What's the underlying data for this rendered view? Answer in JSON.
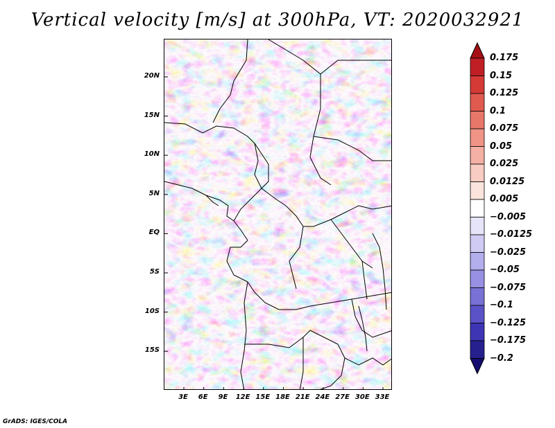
{
  "title": "Vertical velocity [m/s] at 300hPa, VT: 2020032921",
  "footer": "GrADS: IGES/COLA",
  "lat_labels": [
    "20N",
    "15N",
    "10N",
    "5N",
    "EQ",
    "5S",
    "10S",
    "15S"
  ],
  "lon_labels": [
    "3E",
    "6E",
    "9E",
    "12E",
    "15E",
    "18E",
    "21E",
    "24E",
    "27E",
    "30E",
    "33E"
  ],
  "colorbar": {
    "labels": [
      "0.175",
      "0.15",
      "0.125",
      "0.1",
      "0.075",
      "0.05",
      "0.025",
      "0.0125",
      "0.005",
      "−0.005",
      "−0.0125",
      "−0.025",
      "−0.05",
      "−0.075",
      "−0.1",
      "−0.125",
      "−0.175",
      "−0.2"
    ],
    "colors": [
      "#a50f15",
      "#c01f25",
      "#d63a36",
      "#e05a50",
      "#e8776a",
      "#ef9486",
      "#f4b0a4",
      "#f8ccc2",
      "#fbe4dd",
      "#ffffff",
      "#e6e4f8",
      "#cfcbf3",
      "#b3aeec",
      "#9890e2",
      "#7a71d6",
      "#5c52c8",
      "#3e35b4",
      "#26208f",
      "#140c6e"
    ]
  }
}
